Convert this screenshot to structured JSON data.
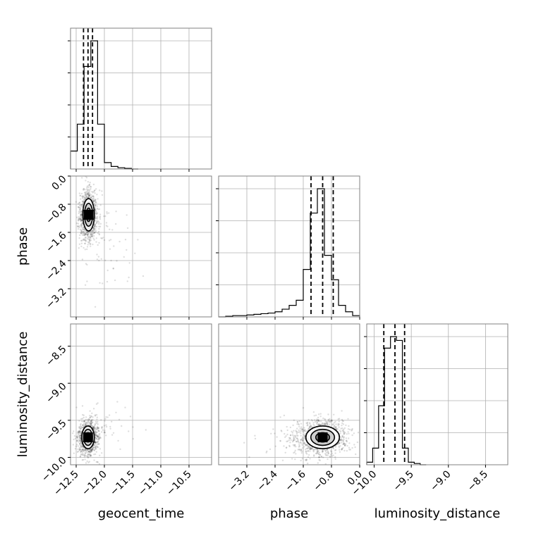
{
  "chart_data": {
    "type": "corner",
    "parameters": [
      "geocent_time",
      "phase",
      "luminosity_distance"
    ],
    "grid": true,
    "axes": {
      "geocent_time": {
        "label": "geocent_time",
        "ticks": [
          -12.5,
          -12.0,
          -11.5,
          -11.0,
          -10.5
        ],
        "tick_labels": [
          "−12.5",
          "−12.0",
          "−11.5",
          "−11.0",
          "−10.5"
        ],
        "range": [
          -12.6,
          -10.1
        ]
      },
      "phase": {
        "label": "phase",
        "ticks": [
          -3.2,
          -2.4,
          -1.6,
          -0.8,
          0.0
        ],
        "tick_labels": [
          "−3.2",
          "−2.4",
          "−1.6",
          "−0.8",
          "0.0"
        ],
        "range": [
          -4.0,
          0.0
        ]
      },
      "luminosity_distance": {
        "label": "luminosity_distance",
        "ticks": [
          -10.0,
          -9.5,
          -9.0,
          -8.5
        ],
        "tick_labels": [
          "−10.0",
          "−9.5",
          "−9.0",
          "−8.5"
        ],
        "range": [
          -10.1,
          -8.2
        ]
      }
    },
    "histograms": [
      {
        "param": "geocent_time",
        "bin_edges": [
          -12.6,
          -12.48,
          -12.36,
          -12.24,
          -12.12,
          -12.0,
          -11.88,
          -11.76,
          -11.64,
          -11.52,
          -11.4
        ],
        "counts": [
          0.14,
          0.35,
          0.8,
          1.0,
          0.35,
          0.05,
          0.02,
          0.01,
          0.005,
          0
        ],
        "quantiles": [
          -12.37,
          -12.29,
          -12.21
        ]
      },
      {
        "param": "phase",
        "bin_edges": [
          -4.0,
          -3.8,
          -3.6,
          -3.4,
          -3.2,
          -3.0,
          -2.8,
          -2.6,
          -2.4,
          -2.2,
          -2.0,
          -1.8,
          -1.6,
          -1.4,
          -1.2,
          -1.0,
          -0.8,
          -0.6,
          -0.4,
          -0.2,
          0.0
        ],
        "counts": [
          0,
          0.005,
          0.01,
          0.01,
          0.015,
          0.02,
          0.025,
          0.03,
          0.04,
          0.06,
          0.09,
          0.13,
          0.37,
          0.81,
          1.0,
          0.48,
          0.29,
          0.09,
          0.04,
          0.01
        ],
        "quantiles": [
          -1.38,
          -1.05,
          -0.75
        ]
      },
      {
        "param": "luminosity_distance",
        "bin_edges": [
          -10.1,
          -10.02,
          -9.94,
          -9.86,
          -9.78,
          -9.7,
          -9.62,
          -9.54,
          -9.46,
          -9.38,
          -9.3
        ],
        "counts": [
          0.02,
          0.13,
          0.46,
          0.91,
          1.0,
          0.97,
          0.13,
          0.02,
          0.01,
          0
        ],
        "quantiles": [
          -9.87,
          -9.72,
          -9.59
        ]
      }
    ],
    "joint": [
      {
        "x": "geocent_time",
        "y": "phase",
        "mean": [
          -12.28,
          -1.1
        ],
        "sd": [
          0.06,
          0.27
        ],
        "levels": [
          0.5,
          1.0,
          1.5
        ]
      },
      {
        "x": "geocent_time",
        "y": "luminosity_distance",
        "mean": [
          -12.29,
          -9.73
        ],
        "sd": [
          0.065,
          0.09
        ],
        "levels": [
          0.5,
          1.0,
          1.5
        ]
      },
      {
        "x": "phase",
        "y": "luminosity_distance",
        "mean": [
          -1.05,
          -9.73
        ],
        "sd": [
          0.28,
          0.09
        ],
        "levels": [
          0.5,
          1.0,
          1.5
        ]
      }
    ]
  }
}
